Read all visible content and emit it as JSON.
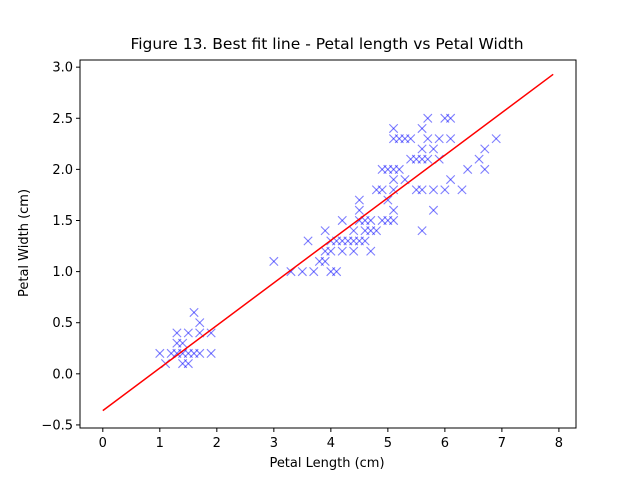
{
  "chart_data": {
    "type": "scatter",
    "title": "Figure 13. Best fit line - Petal length vs Petal Width",
    "xlabel": "Petal Length (cm)",
    "ylabel": "Petal Width (cm)",
    "xlim": [
      -0.4,
      8.3
    ],
    "ylim": [
      -0.53,
      3.07
    ],
    "xticks": [
      0,
      1,
      2,
      3,
      4,
      5,
      6,
      7,
      8
    ],
    "yticks": [
      -0.5,
      0.0,
      0.5,
      1.0,
      1.5,
      2.0,
      2.5,
      3.0
    ],
    "grid": false,
    "colors": {
      "points": "#0000ff",
      "fit_line": "#ff0000",
      "axes": "#000000"
    },
    "series": [
      {
        "kind": "scatter",
        "marker": "x",
        "points": [
          [
            1.0,
            0.2
          ],
          [
            1.1,
            0.1
          ],
          [
            1.2,
            0.2
          ],
          [
            1.3,
            0.2
          ],
          [
            1.3,
            0.3
          ],
          [
            1.3,
            0.4
          ],
          [
            1.4,
            0.1
          ],
          [
            1.4,
            0.2
          ],
          [
            1.4,
            0.3
          ],
          [
            1.5,
            0.1
          ],
          [
            1.5,
            0.2
          ],
          [
            1.5,
            0.4
          ],
          [
            1.6,
            0.2
          ],
          [
            1.6,
            0.6
          ],
          [
            1.7,
            0.2
          ],
          [
            1.7,
            0.4
          ],
          [
            1.7,
            0.5
          ],
          [
            1.9,
            0.2
          ],
          [
            1.9,
            0.4
          ],
          [
            3.0,
            1.1
          ],
          [
            3.3,
            1.0
          ],
          [
            3.5,
            1.0
          ],
          [
            3.6,
            1.3
          ],
          [
            3.7,
            1.0
          ],
          [
            3.8,
            1.1
          ],
          [
            3.9,
            1.1
          ],
          [
            3.9,
            1.2
          ],
          [
            3.9,
            1.4
          ],
          [
            4.0,
            1.0
          ],
          [
            4.0,
            1.2
          ],
          [
            4.0,
            1.3
          ],
          [
            4.1,
            1.0
          ],
          [
            4.1,
            1.3
          ],
          [
            4.2,
            1.2
          ],
          [
            4.2,
            1.3
          ],
          [
            4.2,
            1.5
          ],
          [
            4.3,
            1.3
          ],
          [
            4.4,
            1.2
          ],
          [
            4.4,
            1.3
          ],
          [
            4.4,
            1.4
          ],
          [
            4.5,
            1.3
          ],
          [
            4.5,
            1.5
          ],
          [
            4.5,
            1.6
          ],
          [
            4.5,
            1.7
          ],
          [
            4.6,
            1.3
          ],
          [
            4.6,
            1.4
          ],
          [
            4.6,
            1.5
          ],
          [
            4.7,
            1.2
          ],
          [
            4.7,
            1.4
          ],
          [
            4.7,
            1.5
          ],
          [
            4.8,
            1.4
          ],
          [
            4.8,
            1.8
          ],
          [
            4.9,
            1.5
          ],
          [
            4.9,
            1.8
          ],
          [
            4.9,
            2.0
          ],
          [
            5.0,
            1.5
          ],
          [
            5.0,
            1.7
          ],
          [
            5.0,
            2.0
          ],
          [
            5.1,
            1.5
          ],
          [
            5.1,
            1.6
          ],
          [
            5.1,
            1.8
          ],
          [
            5.1,
            1.9
          ],
          [
            5.1,
            2.0
          ],
          [
            5.1,
            2.3
          ],
          [
            5.1,
            2.4
          ],
          [
            5.2,
            2.0
          ],
          [
            5.2,
            2.3
          ],
          [
            5.3,
            1.9
          ],
          [
            5.3,
            2.3
          ],
          [
            5.4,
            2.1
          ],
          [
            5.4,
            2.3
          ],
          [
            5.5,
            1.8
          ],
          [
            5.5,
            2.1
          ],
          [
            5.6,
            1.4
          ],
          [
            5.6,
            1.8
          ],
          [
            5.6,
            2.1
          ],
          [
            5.6,
            2.2
          ],
          [
            5.6,
            2.4
          ],
          [
            5.7,
            2.1
          ],
          [
            5.7,
            2.3
          ],
          [
            5.7,
            2.5
          ],
          [
            5.8,
            1.6
          ],
          [
            5.8,
            1.8
          ],
          [
            5.8,
            2.2
          ],
          [
            5.9,
            2.1
          ],
          [
            5.9,
            2.3
          ],
          [
            6.0,
            1.8
          ],
          [
            6.0,
            2.5
          ],
          [
            6.1,
            1.9
          ],
          [
            6.1,
            2.3
          ],
          [
            6.1,
            2.5
          ],
          [
            6.3,
            1.8
          ],
          [
            6.4,
            2.0
          ],
          [
            6.6,
            2.1
          ],
          [
            6.7,
            2.0
          ],
          [
            6.7,
            2.2
          ],
          [
            6.9,
            2.3
          ]
        ]
      },
      {
        "kind": "line",
        "points": [
          [
            0.0,
            -0.36
          ],
          [
            7.9,
            2.93
          ]
        ]
      }
    ]
  }
}
